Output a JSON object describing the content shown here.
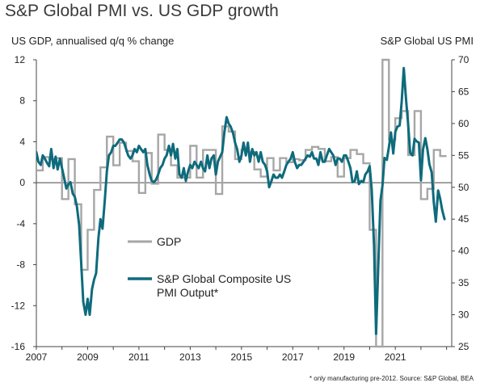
{
  "title": "S&P Global PMI vs. US GDP growth",
  "footnote": "* only manufacturing pre-2012. Source: S&P Global, BEA",
  "chart_data": {
    "type": "line",
    "title": "S&P Global PMI vs. US GDP growth",
    "ylabel_left": "US GDP, annualised q/q % change",
    "ylabel_right": "S&P Global US PMI",
    "xlim": [
      2007,
      2023.2
    ],
    "ylim_left": [
      -16,
      12
    ],
    "ylim_right": [
      25,
      70
    ],
    "x_ticks": [
      2007,
      2009,
      2011,
      2013,
      2015,
      2017,
      2019,
      2021
    ],
    "y_ticks_left": [
      12,
      8,
      4,
      0,
      -4,
      -8,
      -12,
      -16
    ],
    "y_ticks_right": [
      70,
      65,
      60,
      55,
      50,
      45,
      40,
      35,
      30,
      25
    ],
    "grid": false,
    "zero_line": true,
    "legend_position": "center-left",
    "colors": {
      "gdp": "#a6a6a6",
      "pmi": "#0e6b7c",
      "axis": "#444444"
    },
    "series": [
      {
        "name": "GDP",
        "axis": "left",
        "style": "step",
        "points": [
          [
            2007.0,
            1.2
          ],
          [
            2007.25,
            2.5
          ],
          [
            2007.5,
            2.3
          ],
          [
            2007.75,
            2.4
          ],
          [
            2008.0,
            -1.6
          ],
          [
            2008.25,
            2.3
          ],
          [
            2008.5,
            -2.1
          ],
          [
            2008.75,
            -8.5
          ],
          [
            2009.0,
            -4.6
          ],
          [
            2009.25,
            -0.7
          ],
          [
            2009.5,
            1.5
          ],
          [
            2009.75,
            4.5
          ],
          [
            2010.0,
            1.7
          ],
          [
            2010.25,
            3.9
          ],
          [
            2010.5,
            3.1
          ],
          [
            2010.75,
            2.1
          ],
          [
            2011.0,
            -1.0
          ],
          [
            2011.25,
            2.9
          ],
          [
            2011.5,
            -0.1
          ],
          [
            2011.75,
            4.7
          ],
          [
            2012.0,
            3.2
          ],
          [
            2012.25,
            1.7
          ],
          [
            2012.5,
            0.5
          ],
          [
            2012.75,
            0.5
          ],
          [
            2013.0,
            3.6
          ],
          [
            2013.25,
            0.5
          ],
          [
            2013.5,
            3.2
          ],
          [
            2013.75,
            3.2
          ],
          [
            2014.0,
            -1.1
          ],
          [
            2014.25,
            5.5
          ],
          [
            2014.5,
            5.0
          ],
          [
            2014.75,
            2.3
          ],
          [
            2015.0,
            3.2
          ],
          [
            2015.25,
            3.0
          ],
          [
            2015.5,
            1.3
          ],
          [
            2015.75,
            0.6
          ],
          [
            2016.0,
            2.4
          ],
          [
            2016.25,
            1.2
          ],
          [
            2016.5,
            2.4
          ],
          [
            2016.75,
            2.0
          ],
          [
            2017.0,
            2.3
          ],
          [
            2017.25,
            2.2
          ],
          [
            2017.5,
            3.2
          ],
          [
            2017.75,
            3.5
          ],
          [
            2018.0,
            3.3
          ],
          [
            2018.25,
            2.1
          ],
          [
            2018.5,
            2.5
          ],
          [
            2018.75,
            0.6
          ],
          [
            2019.0,
            2.4
          ],
          [
            2019.25,
            3.2
          ],
          [
            2019.5,
            2.8
          ],
          [
            2019.75,
            1.9
          ],
          [
            2020.0,
            -4.6
          ],
          [
            2020.25,
            -16.0
          ],
          [
            2020.5,
            12.0
          ],
          [
            2020.75,
            4.2
          ],
          [
            2021.0,
            6.3
          ],
          [
            2021.25,
            7.0
          ],
          [
            2021.5,
            2.7
          ],
          [
            2021.75,
            7.0
          ],
          [
            2022.0,
            -1.6
          ],
          [
            2022.25,
            -0.6
          ],
          [
            2022.5,
            3.2
          ],
          [
            2022.75,
            2.6
          ]
        ]
      },
      {
        "name": "S&P Global Composite US PMI Output*",
        "axis": "right",
        "style": "line",
        "points": [
          [
            2007.0,
            55.5
          ],
          [
            2007.08,
            54.0
          ],
          [
            2007.17,
            53.5
          ],
          [
            2007.25,
            55.0
          ],
          [
            2007.33,
            54.5
          ],
          [
            2007.42,
            53.8
          ],
          [
            2007.5,
            53.3
          ],
          [
            2007.58,
            56.0
          ],
          [
            2007.67,
            53.0
          ],
          [
            2007.75,
            54.8
          ],
          [
            2007.83,
            52.8
          ],
          [
            2007.92,
            54.5
          ],
          [
            2008.0,
            53.0
          ],
          [
            2008.08,
            51.5
          ],
          [
            2008.17,
            49.8
          ],
          [
            2008.25,
            50.5
          ],
          [
            2008.33,
            50.8
          ],
          [
            2008.42,
            49.0
          ],
          [
            2008.5,
            48.5
          ],
          [
            2008.58,
            47.0
          ],
          [
            2008.67,
            44.0
          ],
          [
            2008.75,
            38.0
          ],
          [
            2008.83,
            32.0
          ],
          [
            2008.92,
            30.0
          ],
          [
            2009.0,
            32.5
          ],
          [
            2009.08,
            30.0
          ],
          [
            2009.17,
            34.0
          ],
          [
            2009.25,
            35.5
          ],
          [
            2009.33,
            36.5
          ],
          [
            2009.42,
            42.0
          ],
          [
            2009.5,
            45.0
          ],
          [
            2009.58,
            43.5
          ],
          [
            2009.67,
            48.0
          ],
          [
            2009.75,
            52.5
          ],
          [
            2009.83,
            55.0
          ],
          [
            2009.92,
            55.5
          ],
          [
            2010.0,
            56.5
          ],
          [
            2010.08,
            56.5
          ],
          [
            2010.17,
            57.0
          ],
          [
            2010.25,
            57.5
          ],
          [
            2010.33,
            57.5
          ],
          [
            2010.42,
            57.0
          ],
          [
            2010.5,
            56.0
          ],
          [
            2010.58,
            55.0
          ],
          [
            2010.67,
            54.5
          ],
          [
            2010.75,
            55.0
          ],
          [
            2010.83,
            56.0
          ],
          [
            2010.92,
            55.5
          ],
          [
            2011.0,
            56.5
          ],
          [
            2011.08,
            56.0
          ],
          [
            2011.17,
            55.5
          ],
          [
            2011.25,
            56.0
          ],
          [
            2011.33,
            53.5
          ],
          [
            2011.42,
            52.0
          ],
          [
            2011.5,
            51.0
          ],
          [
            2011.58,
            50.8
          ],
          [
            2011.67,
            51.2
          ],
          [
            2011.75,
            52.0
          ],
          [
            2011.83,
            53.0
          ],
          [
            2011.92,
            53.5
          ],
          [
            2012.0,
            54.5
          ],
          [
            2012.08,
            55.0
          ],
          [
            2012.17,
            56.5
          ],
          [
            2012.25,
            55.0
          ],
          [
            2012.33,
            56.8
          ],
          [
            2012.42,
            54.5
          ],
          [
            2012.5,
            56.0
          ],
          [
            2012.58,
            52.0
          ],
          [
            2012.67,
            51.5
          ],
          [
            2012.75,
            53.0
          ],
          [
            2012.83,
            51.0
          ],
          [
            2012.92,
            52.5
          ],
          [
            2013.0,
            53.5
          ],
          [
            2013.08,
            53.0
          ],
          [
            2013.17,
            54.0
          ],
          [
            2013.25,
            53.5
          ],
          [
            2013.33,
            53.0
          ],
          [
            2013.42,
            54.0
          ],
          [
            2013.5,
            53.0
          ],
          [
            2013.58,
            52.5
          ],
          [
            2013.67,
            55.0
          ],
          [
            2013.75,
            53.0
          ],
          [
            2013.83,
            54.5
          ],
          [
            2013.92,
            55.0
          ],
          [
            2014.0,
            52.0
          ],
          [
            2014.08,
            54.0
          ],
          [
            2014.17,
            54.8
          ],
          [
            2014.25,
            55.5
          ],
          [
            2014.33,
            58.5
          ],
          [
            2014.42,
            61.0
          ],
          [
            2014.5,
            60.0
          ],
          [
            2014.58,
            59.5
          ],
          [
            2014.67,
            58.5
          ],
          [
            2014.75,
            57.0
          ],
          [
            2014.83,
            56.0
          ],
          [
            2014.92,
            54.0
          ],
          [
            2015.0,
            55.0
          ],
          [
            2015.08,
            57.0
          ],
          [
            2015.17,
            55.0
          ],
          [
            2015.25,
            57.0
          ],
          [
            2015.33,
            54.0
          ],
          [
            2015.42,
            56.0
          ],
          [
            2015.5,
            55.0
          ],
          [
            2015.58,
            55.5
          ],
          [
            2015.67,
            54.0
          ],
          [
            2015.75,
            55.5
          ],
          [
            2015.83,
            54.0
          ],
          [
            2015.92,
            53.5
          ],
          [
            2016.0,
            52.5
          ],
          [
            2016.08,
            50.0
          ],
          [
            2016.17,
            51.0
          ],
          [
            2016.25,
            52.0
          ],
          [
            2016.33,
            51.5
          ],
          [
            2016.42,
            51.5
          ],
          [
            2016.5,
            52.0
          ],
          [
            2016.58,
            51.5
          ],
          [
            2016.67,
            52.5
          ],
          [
            2016.75,
            53.5
          ],
          [
            2016.83,
            54.0
          ],
          [
            2016.92,
            54.5
          ],
          [
            2017.0,
            55.5
          ],
          [
            2017.08,
            54.0
          ],
          [
            2017.17,
            53.0
          ],
          [
            2017.25,
            53.5
          ],
          [
            2017.33,
            53.5
          ],
          [
            2017.42,
            54.0
          ],
          [
            2017.5,
            54.5
          ],
          [
            2017.58,
            55.0
          ],
          [
            2017.67,
            54.8
          ],
          [
            2017.75,
            55.5
          ],
          [
            2017.83,
            54.5
          ],
          [
            2017.92,
            54.5
          ],
          [
            2018.0,
            53.5
          ],
          [
            2018.08,
            55.5
          ],
          [
            2018.17,
            54.0
          ],
          [
            2018.25,
            54.0
          ],
          [
            2018.33,
            55.0
          ],
          [
            2018.42,
            56.0
          ],
          [
            2018.5,
            55.5
          ],
          [
            2018.58,
            55.0
          ],
          [
            2018.67,
            53.5
          ],
          [
            2018.75,
            54.5
          ],
          [
            2018.83,
            54.5
          ],
          [
            2018.92,
            54.0
          ],
          [
            2019.0,
            55.0
          ],
          [
            2019.08,
            55.0
          ],
          [
            2019.17,
            54.0
          ],
          [
            2019.25,
            53.0
          ],
          [
            2019.33,
            50.8
          ],
          [
            2019.42,
            51.0
          ],
          [
            2019.5,
            52.5
          ],
          [
            2019.58,
            50.5
          ],
          [
            2019.67,
            51.0
          ],
          [
            2019.75,
            50.8
          ],
          [
            2019.83,
            52.0
          ],
          [
            2019.92,
            52.5
          ],
          [
            2020.0,
            53.3
          ],
          [
            2020.08,
            49.6
          ],
          [
            2020.17,
            40.9
          ],
          [
            2020.25,
            27.0
          ],
          [
            2020.33,
            37.0
          ],
          [
            2020.42,
            47.9
          ],
          [
            2020.5,
            50.3
          ],
          [
            2020.58,
            54.6
          ],
          [
            2020.67,
            54.3
          ],
          [
            2020.75,
            56.3
          ],
          [
            2020.83,
            58.6
          ],
          [
            2020.92,
            55.3
          ],
          [
            2021.0,
            58.7
          ],
          [
            2021.08,
            59.5
          ],
          [
            2021.17,
            59.7
          ],
          [
            2021.25,
            63.5
          ],
          [
            2021.33,
            68.7
          ],
          [
            2021.42,
            63.7
          ],
          [
            2021.5,
            59.9
          ],
          [
            2021.58,
            55.4
          ],
          [
            2021.67,
            55.0
          ],
          [
            2021.75,
            57.6
          ],
          [
            2021.83,
            57.2
          ],
          [
            2021.92,
            57.0
          ],
          [
            2022.0,
            51.1
          ],
          [
            2022.08,
            55.9
          ],
          [
            2022.17,
            57.7
          ],
          [
            2022.25,
            56.0
          ],
          [
            2022.33,
            53.6
          ],
          [
            2022.42,
            52.3
          ],
          [
            2022.5,
            47.7
          ],
          [
            2022.58,
            44.6
          ],
          [
            2022.67,
            49.5
          ],
          [
            2022.75,
            48.2
          ],
          [
            2022.83,
            46.4
          ],
          [
            2022.92,
            45.0
          ]
        ]
      }
    ]
  }
}
